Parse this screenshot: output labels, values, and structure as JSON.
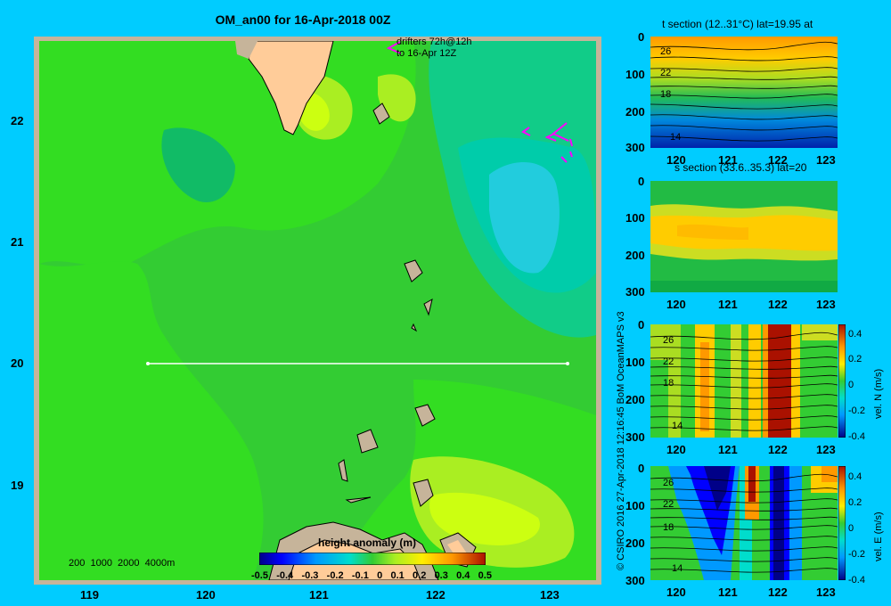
{
  "map": {
    "title": "OM_an00 for 16-Apr-2018 00Z",
    "drifters_line1": "drifters 72h@12h",
    "drifters_line2": "to 16-Apr 12Z",
    "lon_ticks": [
      "119",
      "120",
      "121",
      "122",
      "123"
    ],
    "lat_ticks": [
      "22",
      "21",
      "20",
      "19"
    ],
    "depth_scale": "200  1000  2000  4000m",
    "colorbar_title": "height anomaly  (m)",
    "colorbar_labels": [
      "-0.5",
      "-0.4",
      "-0.3",
      "-0.2",
      "-0.1",
      "0",
      "0.1",
      "0.2",
      "0.3",
      "0.4",
      "0.5"
    ],
    "section_line": {
      "lon_start": 119.5,
      "lon_end": 123.2,
      "lat": 20
    }
  },
  "credit": "© CSIRO 2016   27-Apr-2018 12:16:45 BoM OceanMAPS v3",
  "panels": [
    {
      "title": "t section (12..31°C) lat=19.95 at",
      "x_ticks": [
        "120",
        "121",
        "122",
        "123"
      ],
      "y_ticks": [
        "0",
        "100",
        "200",
        "300"
      ],
      "contour_labels": [
        "26",
        "22",
        "18",
        "14"
      ]
    },
    {
      "title": "s section (33.6..35.3) lat=20",
      "x_ticks": [
        "120",
        "121",
        "122",
        "123"
      ],
      "y_ticks": [
        "0",
        "100",
        "200",
        "300"
      ],
      "contour_labels": []
    },
    {
      "title": "",
      "x_ticks": [
        "120",
        "121",
        "122",
        "123"
      ],
      "y_ticks": [
        "0",
        "100",
        "200",
        "300"
      ],
      "contour_labels": [
        "26",
        "22",
        "18",
        "14"
      ],
      "colorbar_label": "vel. N  (m/s)",
      "colorbar_ticks": [
        "0.4",
        "0.2",
        "0",
        "-0.2",
        "-0.4"
      ]
    },
    {
      "title": "",
      "x_ticks": [
        "120",
        "121",
        "122",
        "123"
      ],
      "y_ticks": [
        "0",
        "100",
        "200",
        "300"
      ],
      "contour_labels": [
        "26",
        "22",
        "18",
        "14"
      ],
      "colorbar_label": "vel. E  (m/s)",
      "colorbar_ticks": [
        "0.4",
        "0.2",
        "0",
        "-0.2",
        "-0.4"
      ]
    }
  ],
  "colors": {
    "background": "#00ccff",
    "land": "#ffcc99",
    "shelf": "#c6b49a",
    "drifter": "#ff00ff"
  }
}
